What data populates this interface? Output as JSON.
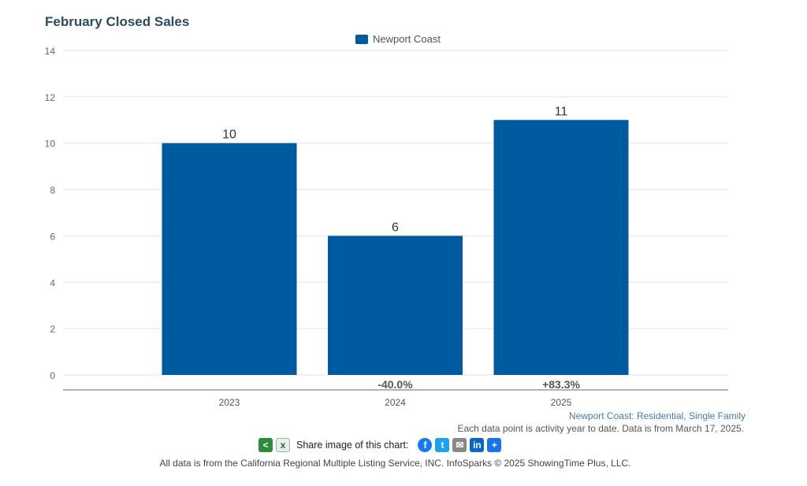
{
  "chart_data": {
    "type": "bar",
    "title": "February Closed Sales",
    "categories": [
      "2023",
      "2024",
      "2025"
    ],
    "series": [
      {
        "name": "Newport Coast",
        "values": [
          10,
          6,
          11
        ],
        "color": "#005aa0"
      }
    ],
    "data_labels": [
      "10",
      "6",
      "11"
    ],
    "change_labels": [
      "",
      "-40.0%",
      "+83.3%"
    ],
    "ylim": [
      0,
      14
    ],
    "yticks": [
      "0",
      "2",
      "4",
      "6",
      "8",
      "10",
      "12",
      "14"
    ],
    "grid": true,
    "legend_position": "top-center"
  },
  "notes": {
    "subtitle": "Newport Coast: Residential, Single Family",
    "data_note": "Each data point is activity year to date. Data is from March 17, 2025."
  },
  "share": {
    "label": "Share image of this chart:",
    "icons": [
      "share-icon",
      "excel-icon",
      "facebook-icon",
      "twitter-icon",
      "email-icon",
      "linkedin-icon",
      "plus-icon"
    ]
  },
  "footer": "All data is from the California Regional Multiple Listing Service, INC. InfoSparks © 2025 ShowingTime Plus, LLC."
}
